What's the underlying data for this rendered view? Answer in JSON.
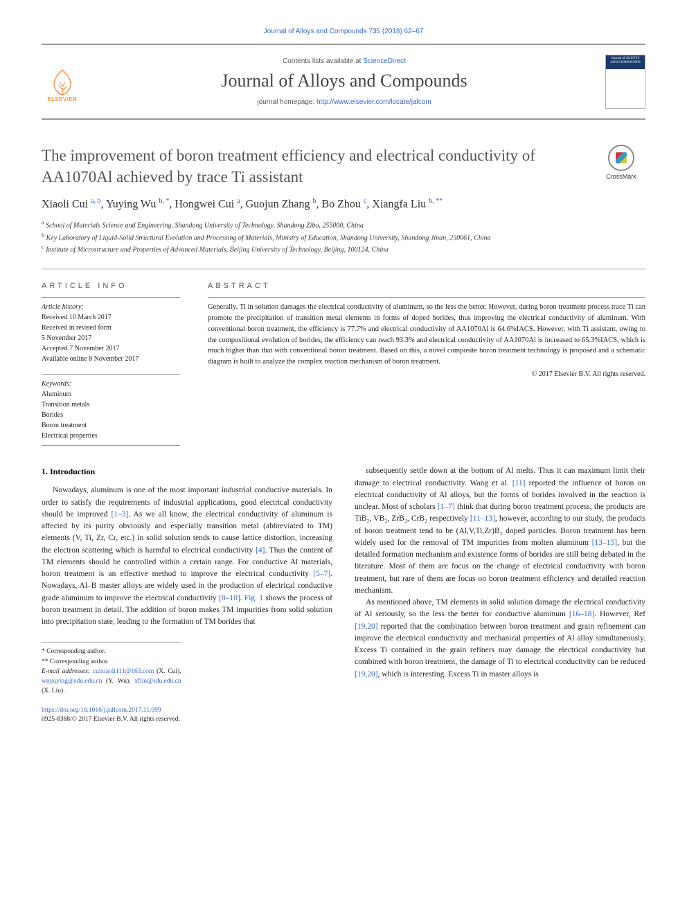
{
  "header": {
    "citation": "Journal of Alloys and Compounds 735 (2018) 62–67",
    "contents_prefix": "Contents lists available at ",
    "contents_link": "ScienceDirect",
    "journal_name": "Journal of Alloys and Compounds",
    "homepage_prefix": "journal homepage: ",
    "homepage_link": "http://www.elsevier.com/locate/jalcom",
    "elsevier_label": "ELSEVIER",
    "cover_text": "Journal of ALLOYS AND COMPOUNDS"
  },
  "crossmark": {
    "label": "CrossMark"
  },
  "article": {
    "title": "The improvement of boron treatment efficiency and electrical conductivity of AA1070Al achieved by trace Ti assistant",
    "authors_html": "Xiaoli Cui <sup>a, b</sup>, Yuying Wu <sup>b, *</sup>, Hongwei Cui <sup>a</sup>, Guojun Zhang <sup>b</sup>, Bo Zhou <sup>c</sup>, Xiangfa Liu <sup>b, **</sup>",
    "affiliations": {
      "a": "School of Materials Science and Engineering, Shandong University of Technology, Shandong Zibo, 255000, China",
      "b": "Key Laboratory of Liquid-Solid Structural Evolution and Processing of Materials, Ministry of Education, Shandong University, Shandong Jinan, 250061, China",
      "c": "Institute of Microstructure and Properties of Advanced Materials, Beijing University of Technology, Beijing, 100124, China"
    }
  },
  "info": {
    "heading": "article info",
    "history_label": "Article history:",
    "history": [
      "Received 10 March 2017",
      "Received in revised form",
      "5 November 2017",
      "Accepted 7 November 2017",
      "Available online 8 November 2017"
    ],
    "keywords_label": "Keywords:",
    "keywords": [
      "Aluminum",
      "Transition metals",
      "Borides",
      "Boron treatment",
      "Electrical properties"
    ]
  },
  "abstract": {
    "heading": "abstract",
    "text": "Generally, Ti in solution damages the electrical conductivity of aluminum, so the less the better. However, during boron treatment process trace Ti can promote the precipitation of transition metal elements in forms of doped borides, thus improving the electrical conductivity of aluminum. With conventional boron treatment, the efficiency is 77.7% and electrical conductivity of AA1070Al is 64.6%IACS. However, with Ti assistant, owing to the compositional evolution of borides, the efficiency can reach 93.3% and electrical conductivity of AA1070Al is increased to 65.3%IACS, which is much higher than that with conventional boron treatment. Based on this, a novel composite boron treatment technology is proposed and a schematic diagram is built to analyze the complex reaction mechanism of boron treatment.",
    "copyright": "© 2017 Elsevier B.V. All rights reserved."
  },
  "body": {
    "section_heading": "1. Introduction",
    "col1_p1": "Nowadays, aluminum is one of the most important industrial conductive materials. In order to satisfy the requirements of industrial applications, good electrical conductivity should be improved [1–3]. As we all know, the electrical conductivity of aluminum is affected by its purity obviously and especially transition metal (abbreviated to TM) elements (V, Ti, Zr, Cr, etc.) in solid solution tends to cause lattice distortion, increasing the electron scattering which is harmful to electrical conductivity [4]. Thus the content of TM elements should be controlled within a certain range. For conductive Al materials, boron treatment is an effective method to improve the electrical conductivity [5–7]. Nowadays, Al–B master alloys are widely used in the production of electrical conductive grade aluminum to improve the electrical conductivity [8–10]. Fig. 1 shows the process of boron treatment in detail. The addition of boron makes TM impurities from solid solution into precipitation state, leading to the formation of TM borides that",
    "col2_p1": "subsequently settle down at the bottom of Al melts. Thus it can maximum limit their damage to electrical conductivity. Wang et al. [11] reported the influence of boron on electrical conductivity of Al alloys, but the forms of borides involved in the reaction is unclear. Most of scholars [1–7] think that during boron treatment process, the products are TiB₂, VB₂, ZrB₂, CrB₂ respectively [11–13], however, according to our study, the products of boron treatment tend to be (Al,V,Ti,Zr)B₂ doped particles. Boron treatment has been widely used for the removal of TM impurities from molten aluminum [13–15], but the detailed formation mechanism and existence forms of borides are still being debated in the literature. Most of them are focus on the change of electrical conductivity with boron treatment, but rare of them are focus on boron treatment efficiency and detailed reaction mechanism.",
    "col2_p2": "As mentioned above, TM elements in solid solution damage the electrical conductivity of Al seriously, so the less the better for conductive aluminum [16–18]. However, Ref [19,20] reported that the combination between boron treatment and grain refinement can improve the electrical conductivity and mechanical properties of Al alloy simultaneously. Excess Ti contained in the grain refiners may damage the electrical conductivity but combined with boron treatment, the damage of Ti to electrical conductivity can be reduced [19,20], which is interesting. Excess Ti in master alloys is"
  },
  "footnotes": {
    "corr1": "* Corresponding author.",
    "corr2": "** Corresponding author.",
    "email_label": "E-mail addresses:",
    "emails": [
      {
        "addr": "cuixiaoli111@163.com",
        "who": "(X. Cui)"
      },
      {
        "addr": "wuyuying@sdu.edu.cn",
        "who": "(Y. Wu)"
      },
      {
        "addr": "xfliu@sdu.edu.cn",
        "who": "(X. Liu)"
      }
    ]
  },
  "doi": {
    "link": "https://doi.org/10.1016/j.jallcom.2017.11.099",
    "issn_line": "0925-8388/© 2017 Elsevier B.V. All rights reserved."
  },
  "colors": {
    "link": "#3366cc",
    "elsevier_orange": "#ff6600",
    "rule": "#999999"
  }
}
